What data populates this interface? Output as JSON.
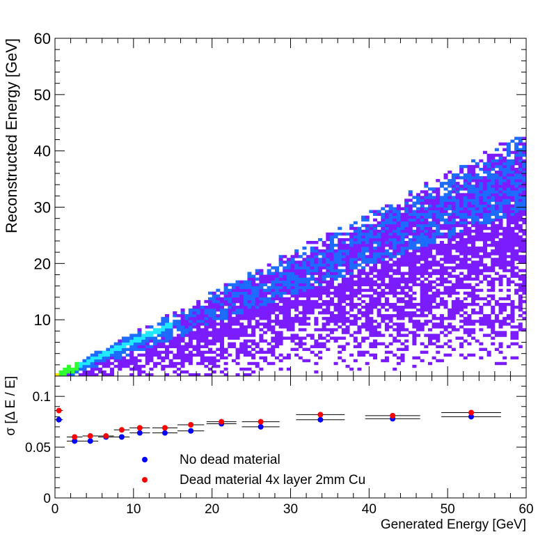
{
  "chart_data": [
    {
      "type": "heatmap",
      "xlim": [
        0,
        60
      ],
      "ylim": [
        0,
        60
      ],
      "ylabel": "Reconstructed Energy [GeV]",
      "y_ticks": [
        10,
        20,
        30,
        40,
        50,
        60
      ],
      "bins": [
        120,
        120
      ],
      "density_band": {
        "description_of_data": "2D histogram of reconstructed vs generated energy",
        "x_range": [
          0,
          60
        ],
        "ridge_slope": 0.62,
        "upper_edge_slope": 0.76,
        "x_hot_spot": [
          0.5,
          15
        ],
        "colors": {
          "low": "#7b1cff",
          "mid": "#1e6bff",
          "high": "#20e8ff",
          "peak": "#30ff30",
          "max": "#ffe000"
        }
      }
    },
    {
      "type": "scatter",
      "xlim": [
        0,
        60
      ],
      "ylim": [
        0,
        0.12
      ],
      "xlabel": "Generated Energy [GeV]",
      "ylabel": "σ [Δ E / E]",
      "x_ticks": [
        0,
        10,
        20,
        30,
        40,
        50,
        60
      ],
      "y_ticks": [
        0,
        0.05,
        0.1
      ],
      "y_tick_labels": [
        "0",
        "0.05",
        "0.1"
      ],
      "series": [
        {
          "name": "No dead material",
          "color": "#0000ff",
          "x": [
            0.5,
            2.5,
            4.5,
            6.5,
            8.5,
            10.8,
            14.0,
            17.3,
            21.2,
            26.2,
            33.8,
            43.0,
            53.0
          ],
          "xerr": [
            0.5,
            1.0,
            1.0,
            1.0,
            1.0,
            1.3,
            1.6,
            1.7,
            1.9,
            2.4,
            3.1,
            3.5,
            3.8
          ],
          "y": [
            0.077,
            0.056,
            0.056,
            0.06,
            0.06,
            0.064,
            0.064,
            0.066,
            0.073,
            0.07,
            0.077,
            0.078,
            0.08
          ]
        },
        {
          "name": "Dead material 4x layer 2mm Cu",
          "color": "#ff0000",
          "x": [
            0.5,
            2.5,
            4.5,
            6.5,
            8.5,
            10.8,
            14.0,
            17.3,
            21.2,
            26.2,
            33.8,
            43.0,
            53.0
          ],
          "xerr": [
            0.5,
            1.0,
            1.0,
            1.0,
            1.0,
            1.3,
            1.6,
            1.7,
            1.9,
            2.4,
            3.1,
            3.5,
            3.8
          ],
          "y": [
            0.086,
            0.06,
            0.061,
            0.061,
            0.067,
            0.069,
            0.069,
            0.072,
            0.075,
            0.075,
            0.082,
            0.081,
            0.084
          ]
        }
      ],
      "legend": {
        "placement": "lower-left"
      }
    }
  ]
}
